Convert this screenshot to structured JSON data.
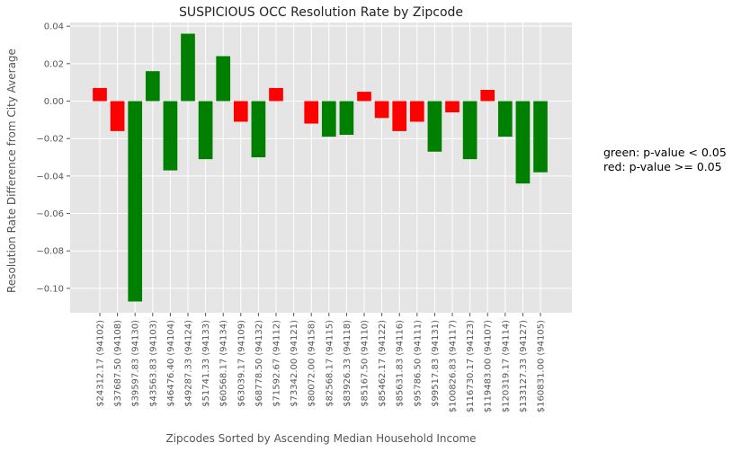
{
  "chart_data": {
    "type": "bar",
    "title": "SUSPICIOUS OCC Resolution Rate by Zipcode",
    "xlabel": "Zipcodes Sorted by Ascending Median Household Income",
    "ylabel": "Resolution Rate Difference from City Average",
    "ylim": [
      -0.113,
      0.042
    ],
    "yticks": [
      0.04,
      0.02,
      0.0,
      -0.02,
      -0.04,
      -0.06,
      -0.08,
      -0.1
    ],
    "ytick_labels": [
      "0.04",
      "0.02",
      "0.00",
      "−0.02",
      "−0.04",
      "−0.06",
      "−0.08",
      "−0.10"
    ],
    "grid": true,
    "colors": {
      "significant": "#008000",
      "not_significant": "#ff0000",
      "plot_background": "#e5e5e5",
      "grid": "#ffffff"
    },
    "legend_note": [
      "green: p-value < 0.05",
      "red: p-value >= 0.05"
    ],
    "categories": [
      "$24312.17 (94102)",
      "$37687.50 (94108)",
      "$39597.83 (94130)",
      "$43563.83 (94103)",
      "$46476.40 (94104)",
      "$49287.33 (94124)",
      "$51741.33 (94133)",
      "$60568.17 (94134)",
      "$63039.17 (94109)",
      "$68778.50 (94132)",
      "$71592.67 (94112)",
      "$73342.00 (94121)",
      "$80072.00 (94158)",
      "$82568.17 (94115)",
      "$83926.33 (94118)",
      "$85167.50 (94110)",
      "$85462.17 (94122)",
      "$85631.83 (94116)",
      "$95786.50 (94111)",
      "$99517.83 (94131)",
      "$100826.83 (94117)",
      "$116730.17 (94123)",
      "$119483.00 (94107)",
      "$120319.17 (94114)",
      "$133127.33 (94127)",
      "$160831.00 (94105)"
    ],
    "values": [
      0.007,
      -0.016,
      -0.107,
      0.016,
      -0.037,
      0.036,
      -0.031,
      0.024,
      -0.011,
      -0.03,
      0.007,
      0.0,
      -0.012,
      -0.019,
      -0.018,
      0.005,
      -0.009,
      -0.016,
      -0.011,
      -0.027,
      -0.006,
      -0.031,
      0.006,
      -0.019,
      -0.044,
      -0.038
    ],
    "significant": [
      false,
      false,
      true,
      true,
      true,
      true,
      true,
      true,
      false,
      true,
      false,
      false,
      false,
      true,
      true,
      false,
      false,
      false,
      false,
      true,
      false,
      true,
      false,
      true,
      true,
      true
    ]
  }
}
